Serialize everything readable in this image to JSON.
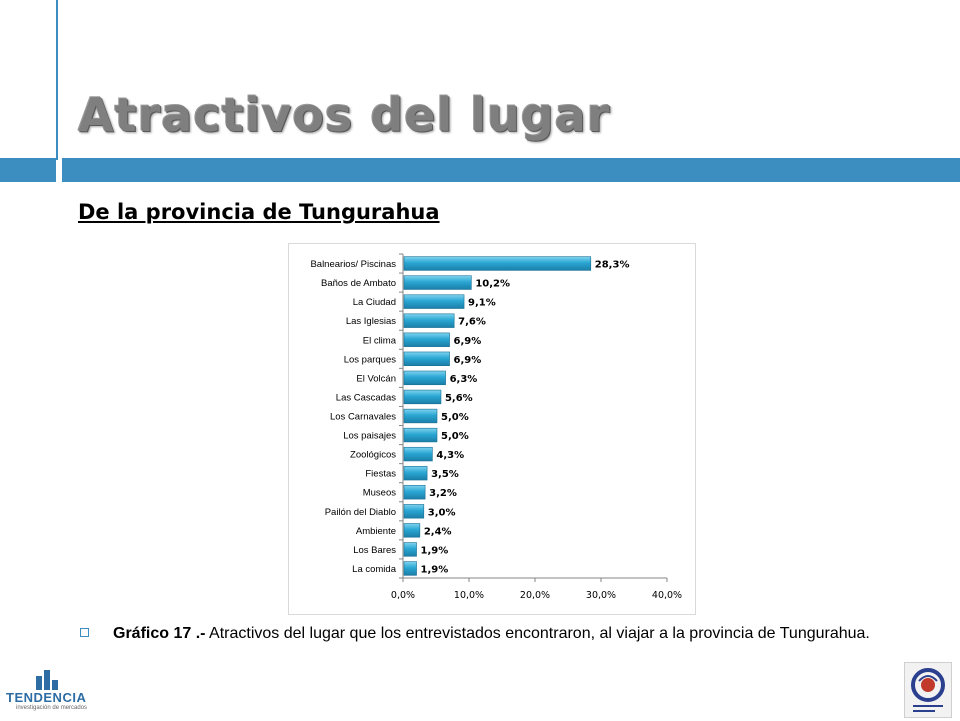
{
  "slide": {
    "title": "Atractivos del lugar",
    "subtitle": "De la provincia de Tungurahua",
    "caption_bold": "Gráfico 17 .-",
    "caption_text": " Atractivos del lugar que los entrevistados encontraron, al viajar a la provincia de Tungurahua."
  },
  "logos": {
    "left_brand": "TENDENCIA",
    "left_tagline": "investigación de mercados"
  },
  "colors": {
    "accent": "#3c8dc0",
    "bar": "#2aa6d3",
    "title_gray": "#7f7f7f"
  },
  "chart_data": {
    "type": "bar",
    "orientation": "horizontal",
    "categories": [
      "Balnearios/ Piscinas",
      "Baños de Ambato",
      "La Ciudad",
      "Las Iglesias",
      "El clima",
      "Los parques",
      "El Volcán",
      "Las Cascadas",
      "Los Carnavales",
      "Los paisajes",
      "Zoológicos",
      "Fiestas",
      "Museos",
      "Pailón del Diablo",
      "Ambiente",
      "Los Bares",
      "La comida"
    ],
    "values": [
      28.3,
      10.2,
      9.1,
      7.6,
      6.9,
      6.9,
      6.3,
      5.6,
      5.0,
      5.0,
      4.3,
      3.5,
      3.2,
      3.0,
      2.4,
      1.9,
      1.9
    ],
    "data_labels": [
      "28,3%",
      "10,2%",
      "9,1%",
      "7,6%",
      "6,9%",
      "6,9%",
      "6,3%",
      "5,6%",
      "5,0%",
      "5,0%",
      "4,3%",
      "3,5%",
      "3,2%",
      "3,0%",
      "2,4%",
      "1,9%",
      "1,9%"
    ],
    "xlim": [
      0,
      40
    ],
    "xticks": [
      "0,0%",
      "10,0%",
      "20,0%",
      "30,0%",
      "40,0%"
    ],
    "title": "",
    "xlabel": "",
    "ylabel": "",
    "grid": false,
    "legend": "none"
  }
}
